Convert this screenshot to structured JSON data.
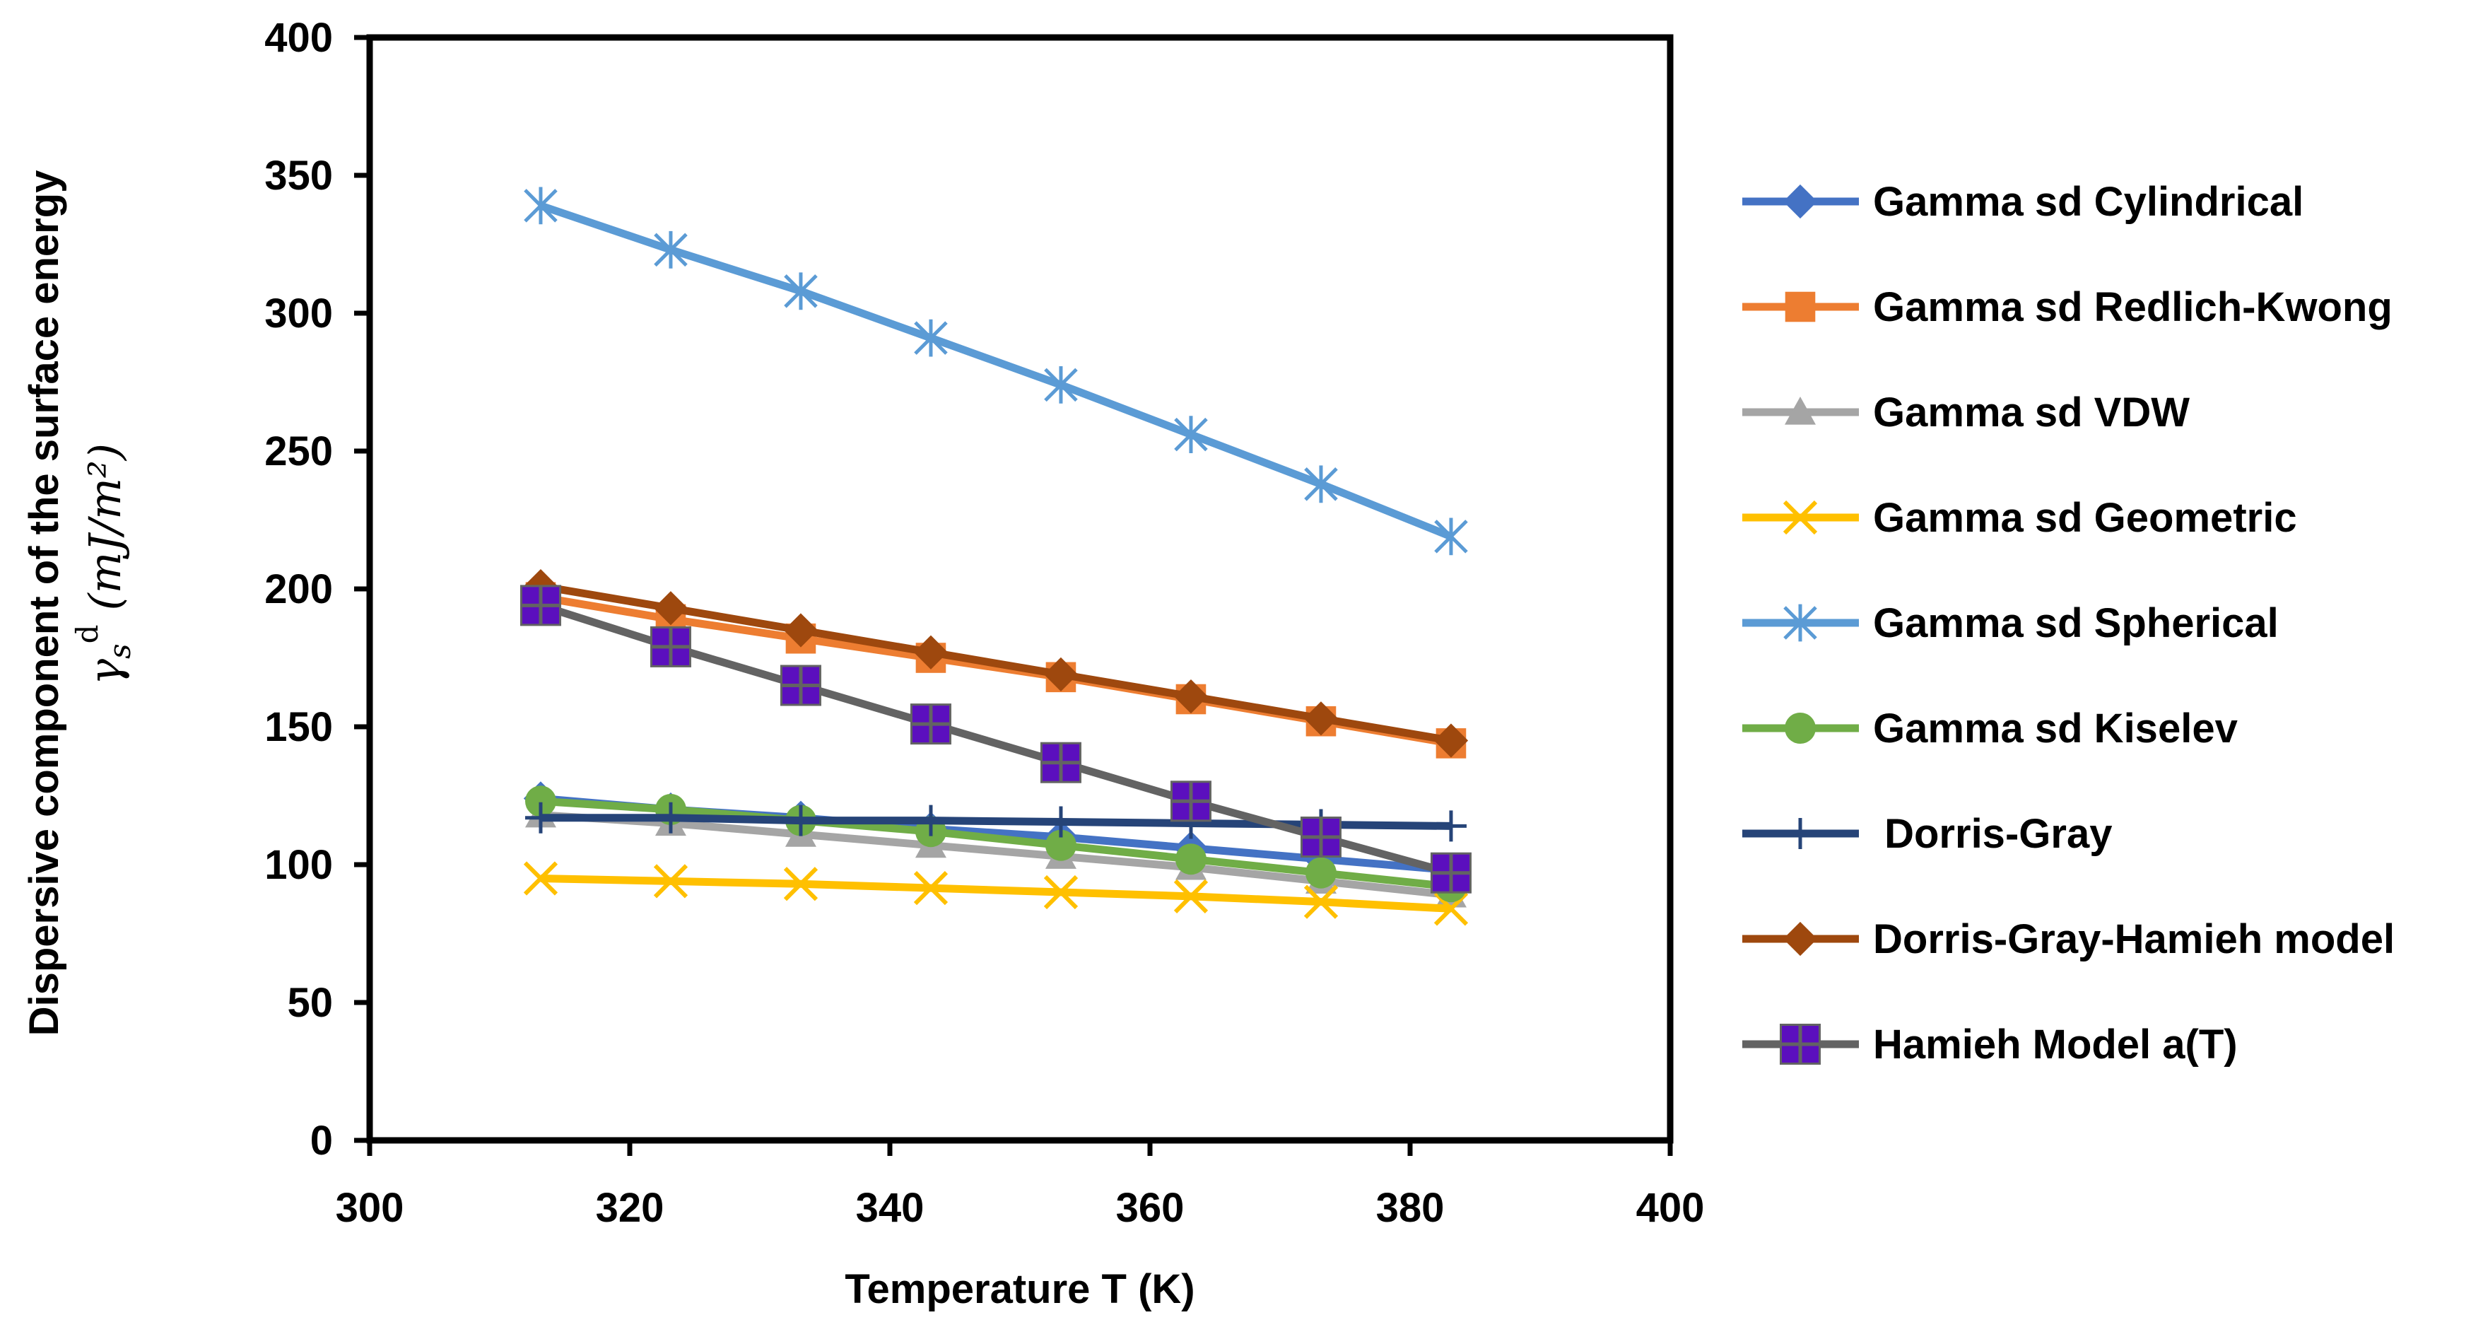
{
  "chart_data": {
    "type": "line",
    "title": "",
    "xlabel": "Temperature T (K)",
    "ylabel": "Dispersive component of the surface energy",
    "ylabel_symbol": "γ",
    "ylabel_sub": "s",
    "ylabel_sup": "d",
    "ylabel_units": "(mJ/m²)",
    "xlim": [
      300,
      400
    ],
    "ylim": [
      0,
      400
    ],
    "x_ticks": [
      "300",
      "320",
      "340",
      "360",
      "380",
      "400"
    ],
    "y_ticks": [
      "0",
      "50",
      "100",
      "150",
      "200",
      "250",
      "300",
      "350",
      "400"
    ],
    "grid": false,
    "legend_position": "right",
    "x": [
      313.15,
      323.15,
      333.15,
      343.15,
      353.15,
      363.15,
      373.15,
      383.15
    ],
    "series": [
      {
        "name": "Gamma sd Cylindrical",
        "color": "#4472C4",
        "marker": "diamond",
        "values": [
          124,
          120,
          117,
          113,
          110,
          106,
          102,
          98
        ]
      },
      {
        "name": "Gamma sd Redlich-Kwong",
        "color": "#ED7D31",
        "marker": "square",
        "values": [
          197,
          189,
          182,
          175,
          168,
          160,
          152,
          144
        ]
      },
      {
        "name": "Gamma sd VDW",
        "color": "#A5A5A5",
        "marker": "triangle",
        "values": [
          118,
          115,
          111,
          107,
          103,
          99,
          94,
          89
        ]
      },
      {
        "name": "Gamma sd Geometric",
        "color": "#FFC000",
        "marker": "x",
        "values": [
          95,
          94,
          93,
          91.5,
          90,
          88.5,
          86.5,
          84
        ]
      },
      {
        "name": "Gamma sd Spherical",
        "color": "#5B9BD5",
        "marker": "asterisk",
        "values": [
          339,
          323,
          308,
          291,
          274,
          256,
          238,
          219
        ]
      },
      {
        "name": "Gamma sd Kiselev",
        "color": "#70AD47",
        "marker": "circle",
        "values": [
          123,
          120,
          116,
          112,
          107,
          102,
          97,
          92
        ]
      },
      {
        "name": " Dorris-Gray",
        "color": "#264478",
        "marker": "plus",
        "values": [
          117,
          117,
          116,
          116,
          115.5,
          115,
          114.5,
          114
        ]
      },
      {
        "name": "Dorris-Gray-Hamieh model",
        "color": "#9E480E",
        "marker": "diamond",
        "values": [
          201,
          193,
          185,
          177,
          169,
          161,
          153,
          145
        ]
      },
      {
        "name": "Hamieh Model a(T)",
        "color": "#636363",
        "marker": "square-plus",
        "marker_fill": "#5B0FBE",
        "values": [
          194,
          179,
          165,
          151,
          137,
          123,
          110,
          97
        ]
      }
    ]
  }
}
